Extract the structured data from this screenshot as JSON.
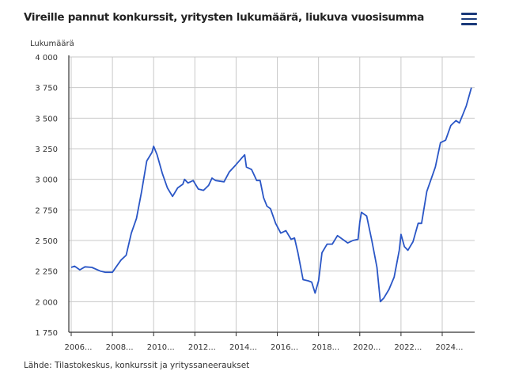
{
  "header": {
    "title": "Vireille pannut konkurssit, yritysten lukumäärä, liukuva vuosisumma",
    "menu_icon": "hamburger-menu-icon"
  },
  "footer": {
    "source": "Lähde: Tilastokeskus, konkurssit ja yrityssaneeraukset"
  },
  "chart_data": {
    "type": "line",
    "title": "Vireille pannut konkurssit, yritysten lukumäärä, liukuva vuosisumma",
    "ylabel": "Lukumäärä",
    "xlabel": "",
    "ylim": [
      1750,
      4000
    ],
    "yticks": [
      1750,
      2000,
      2250,
      2500,
      2750,
      3000,
      3250,
      3500,
      3750,
      4000
    ],
    "ytick_labels": [
      "1 750",
      "2 000",
      "2 250",
      "2 500",
      "2 750",
      "3 000",
      "3 250",
      "3 500",
      "3 750",
      "4 000"
    ],
    "xtick_labels": [
      "2006...",
      "2008...",
      "2010...",
      "2012...",
      "2014...",
      "2016...",
      "2018...",
      "2020...",
      "2022...",
      "2024..."
    ],
    "grid": true,
    "color": "#2a56c6",
    "series": [
      {
        "x": [
          "2006-01",
          "2006-03",
          "2006-06",
          "2006-09",
          "2007-01",
          "2007-06",
          "2007-09",
          "2008-01",
          "2008-04",
          "2008-06",
          "2008-09",
          "2008-12",
          "2009-03",
          "2009-06",
          "2009-09",
          "2009-12",
          "2010-01",
          "2010-03",
          "2010-06",
          "2010-09",
          "2010-12",
          "2011-03",
          "2011-06",
          "2011-07",
          "2011-09",
          "2011-12",
          "2012-03",
          "2012-06",
          "2012-09",
          "2012-11",
          "2013-01",
          "2013-06",
          "2013-09",
          "2014-01",
          "2014-04",
          "2014-06",
          "2014-07",
          "2014-10",
          "2015-01",
          "2015-03",
          "2015-05",
          "2015-07",
          "2015-09",
          "2015-12",
          "2016-03",
          "2016-06",
          "2016-09",
          "2016-11",
          "2017-01",
          "2017-04",
          "2017-07",
          "2017-09",
          "2017-11",
          "2018-01",
          "2018-03",
          "2018-06",
          "2018-09",
          "2018-12",
          "2019-03",
          "2019-06",
          "2019-09",
          "2019-12",
          "2020-01",
          "2020-02",
          "2020-05",
          "2020-08",
          "2020-11",
          "2021-01",
          "2021-03",
          "2021-06",
          "2021-09",
          "2021-12",
          "2022-01",
          "2022-03",
          "2022-05",
          "2022-08",
          "2022-11",
          "2023-01",
          "2023-04",
          "2023-06",
          "2023-09",
          "2023-12",
          "2024-03",
          "2024-06",
          "2024-09",
          "2024-11",
          "2025-01",
          "2025-03",
          "2025-06"
        ],
        "values": [
          2280,
          2290,
          2260,
          2285,
          2280,
          2250,
          2240,
          2240,
          2300,
          2340,
          2380,
          2560,
          2680,
          2900,
          3150,
          3220,
          3270,
          3200,
          3050,
          2930,
          2860,
          2930,
          2960,
          3000,
          2970,
          2990,
          2920,
          2910,
          2950,
          3010,
          2990,
          2980,
          3060,
          3120,
          3170,
          3200,
          3100,
          3080,
          2990,
          2990,
          2850,
          2780,
          2760,
          2640,
          2560,
          2580,
          2510,
          2520,
          2400,
          2180,
          2170,
          2160,
          2070,
          2170,
          2400,
          2470,
          2470,
          2540,
          2510,
          2480,
          2500,
          2510,
          2650,
          2730,
          2700,
          2500,
          2280,
          2000,
          2030,
          2100,
          2200,
          2420,
          2550,
          2450,
          2420,
          2490,
          2640,
          2640,
          2900,
          2980,
          3100,
          3300,
          3320,
          3440,
          3480,
          3460,
          3530,
          3600,
          3750
        ]
      }
    ]
  }
}
